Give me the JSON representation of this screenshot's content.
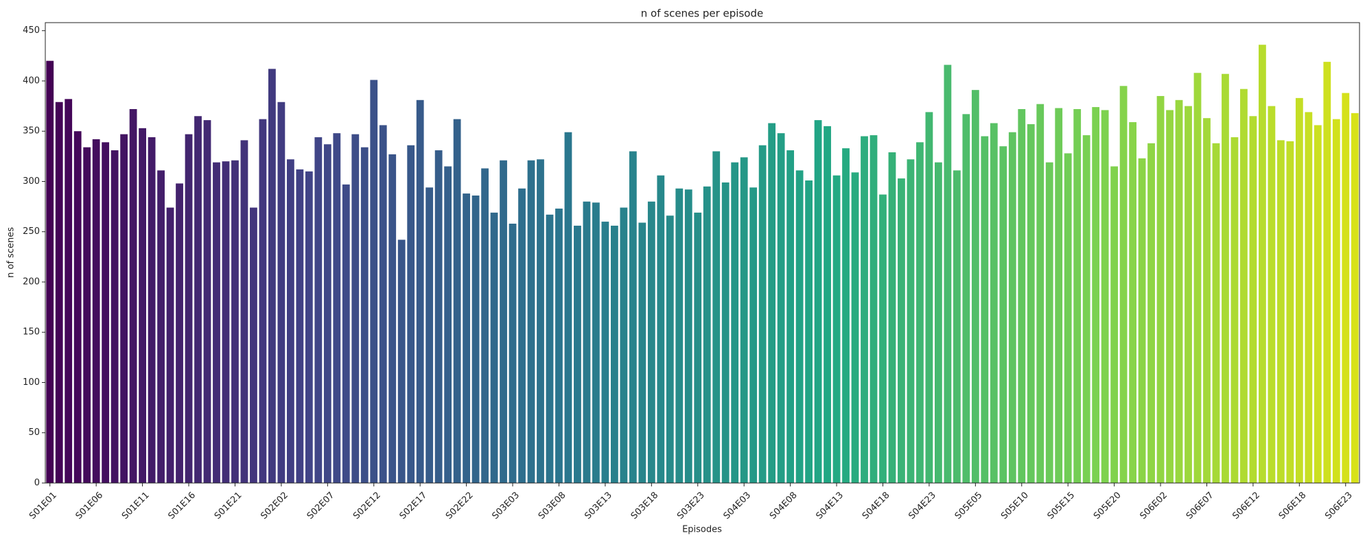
{
  "chart_data": {
    "type": "bar",
    "title": "n of scenes per episode",
    "x_label": "Episodes",
    "y_label": "n of scenes",
    "palette": [
      "#440154",
      "#414487",
      "#2a788e",
      "#22a884",
      "#7ad151",
      "#d8e219"
    ],
    "categories": [
      "S01E01",
      null,
      null,
      null,
      null,
      "S01E06",
      null,
      null,
      null,
      null,
      "S01E11",
      null,
      null,
      null,
      null,
      "S01E16",
      null,
      null,
      null,
      null,
      "S01E21",
      null,
      null,
      null,
      null,
      "S02E02",
      null,
      null,
      null,
      null,
      "S02E07",
      null,
      null,
      null,
      null,
      "S02E12",
      null,
      null,
      null,
      null,
      "S02E17",
      null,
      null,
      null,
      null,
      "S02E22",
      null,
      null,
      null,
      null,
      "S03E03",
      null,
      null,
      null,
      null,
      "S03E08",
      null,
      null,
      null,
      null,
      "S03E13",
      null,
      null,
      null,
      null,
      "S03E18",
      null,
      null,
      null,
      null,
      "S03E23",
      null,
      null,
      null,
      null,
      "S04E03",
      null,
      null,
      null,
      null,
      "S04E08",
      null,
      null,
      null,
      null,
      "S04E13",
      null,
      null,
      null,
      null,
      "S04E18",
      null,
      null,
      null,
      null,
      "S04E23",
      null,
      null,
      null,
      null,
      "S05E05",
      null,
      null,
      null,
      null,
      "S05E10",
      null,
      null,
      null,
      null,
      "S05E15",
      null,
      null,
      null,
      null,
      "S05E20",
      null,
      null,
      null,
      null,
      "S06E02",
      null,
      null,
      null,
      null,
      "S06E07",
      null,
      null,
      null,
      null,
      "S06E12",
      null,
      null,
      null,
      null,
      "S06E18",
      null,
      null,
      null,
      null,
      "S06E23",
      null
    ],
    "values": [
      420,
      379,
      382,
      350,
      334,
      342,
      339,
      331,
      347,
      372,
      353,
      344,
      311,
      274,
      298,
      347,
      365,
      361,
      319,
      320,
      321,
      341,
      274,
      362,
      412,
      379,
      322,
      312,
      310,
      344,
      337,
      348,
      297,
      347,
      334,
      401,
      356,
      327,
      242,
      336,
      381,
      294,
      331,
      315,
      362,
      288,
      286,
      313,
      269,
      321,
      258,
      293,
      321,
      322,
      267,
      273,
      349,
      256,
      280,
      279,
      260,
      256,
      274,
      330,
      259,
      280,
      306,
      266,
      293,
      292,
      269,
      295,
      330,
      299,
      319,
      324,
      294,
      336,
      358,
      348,
      331,
      311,
      301,
      361,
      355,
      306,
      333,
      309,
      345,
      346,
      287,
      329,
      303,
      322,
      339,
      369,
      319,
      416,
      311,
      367,
      391,
      345,
      358,
      335,
      349,
      372,
      357,
      377,
      319,
      373,
      328,
      372,
      346,
      374,
      371,
      315,
      395,
      359,
      323,
      338,
      385,
      371,
      381,
      375,
      408,
      363,
      338,
      407,
      344,
      392,
      365,
      436,
      375,
      341,
      340,
      383,
      369,
      356,
      419,
      362,
      388,
      368
    ],
    "ylim": [
      0,
      458
    ],
    "yticks": [
      0,
      50,
      100,
      150,
      200,
      250,
      300,
      350,
      400,
      450
    ]
  }
}
